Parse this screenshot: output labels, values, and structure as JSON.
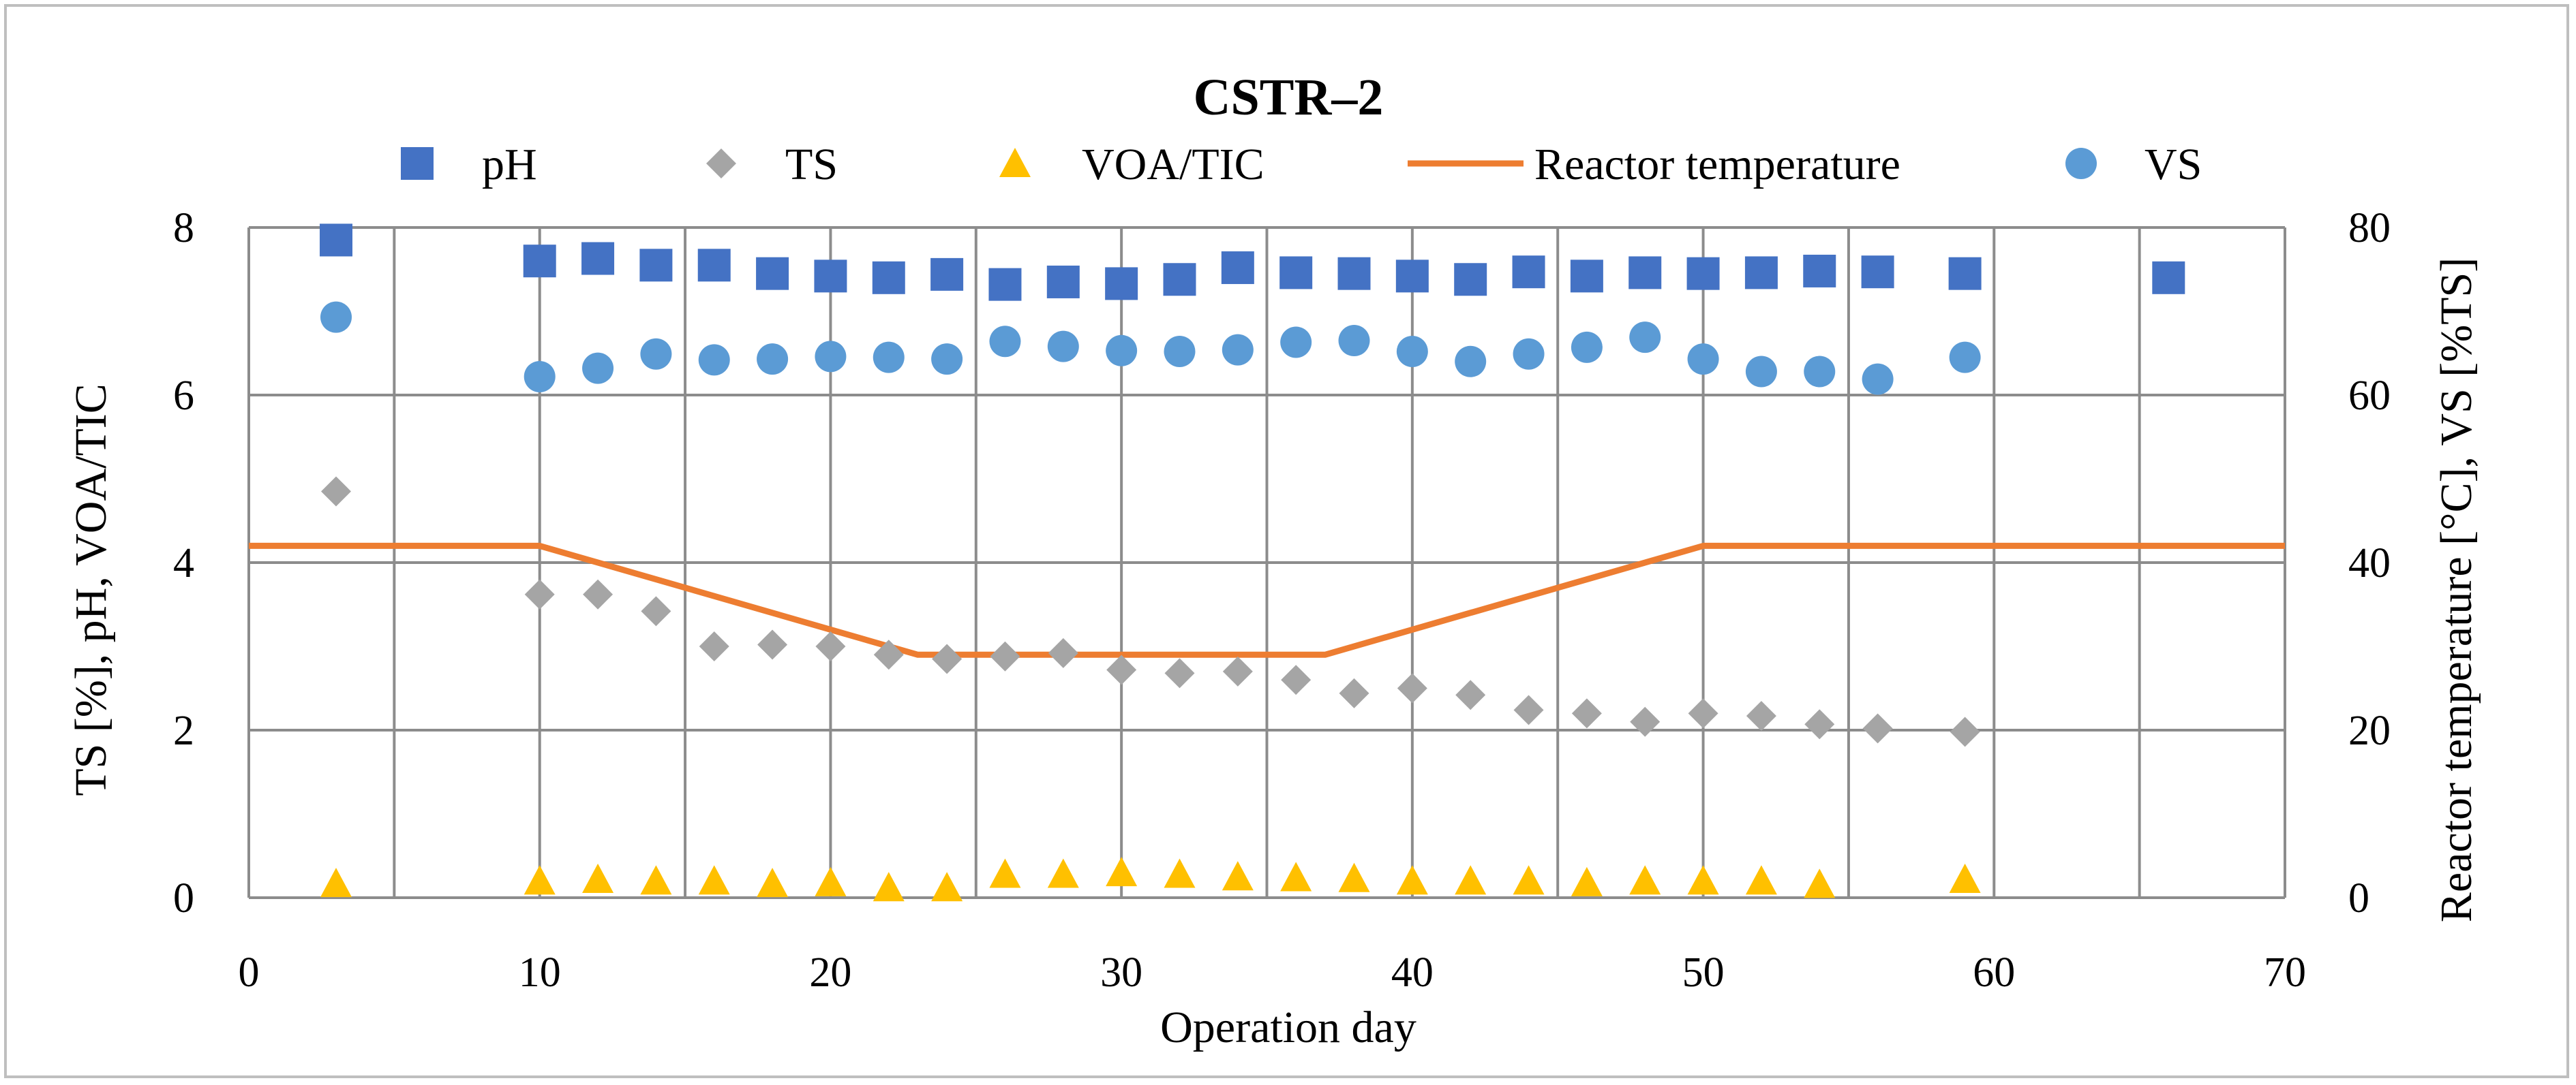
{
  "chart_data": {
    "type": "scatter",
    "title": "CSTR–2",
    "xlabel": "Operation day",
    "ylabel_left": "TS [%], pH, VOA/TIC",
    "ylabel_right": "Reactor temperature [°C], VS [%TS]",
    "xlim": [
      0,
      70
    ],
    "ylim_left": [
      0,
      8
    ],
    "ylim_right": [
      0,
      80
    ],
    "x_ticks": [
      0,
      10,
      20,
      30,
      40,
      50,
      60,
      70
    ],
    "y_ticks_left": [
      0,
      2,
      4,
      6,
      8
    ],
    "y_ticks_right": [
      0,
      20,
      40,
      60,
      80
    ],
    "grid": true,
    "legend_position": "top",
    "series": [
      {
        "name": "pH",
        "axis": "left",
        "marker": "square",
        "color": "#4472C4",
        "points": [
          [
            3,
            7.85
          ],
          [
            10,
            7.6
          ],
          [
            12,
            7.63
          ],
          [
            14,
            7.55
          ],
          [
            16,
            7.55
          ],
          [
            18,
            7.45
          ],
          [
            20,
            7.42
          ],
          [
            22,
            7.4
          ],
          [
            24,
            7.44
          ],
          [
            26,
            7.32
          ],
          [
            28,
            7.35
          ],
          [
            30,
            7.33
          ],
          [
            32,
            7.38
          ],
          [
            34,
            7.52
          ],
          [
            36,
            7.46
          ],
          [
            38,
            7.45
          ],
          [
            40,
            7.42
          ],
          [
            42,
            7.38
          ],
          [
            44,
            7.47
          ],
          [
            46,
            7.42
          ],
          [
            48,
            7.46
          ],
          [
            50,
            7.45
          ],
          [
            52,
            7.46
          ],
          [
            54,
            7.48
          ],
          [
            56,
            7.47
          ],
          [
            59,
            7.45
          ],
          [
            66,
            7.4
          ]
        ]
      },
      {
        "name": "TS",
        "axis": "left",
        "marker": "diamond",
        "color": "#A5A5A5",
        "points": [
          [
            3,
            4.85
          ],
          [
            10,
            3.62
          ],
          [
            12,
            3.62
          ],
          [
            14,
            3.42
          ],
          [
            16,
            3.0
          ],
          [
            18,
            3.02
          ],
          [
            20,
            3.0
          ],
          [
            22,
            2.9
          ],
          [
            24,
            2.85
          ],
          [
            26,
            2.88
          ],
          [
            28,
            2.92
          ],
          [
            30,
            2.72
          ],
          [
            32,
            2.68
          ],
          [
            34,
            2.7
          ],
          [
            36,
            2.6
          ],
          [
            38,
            2.44
          ],
          [
            40,
            2.5
          ],
          [
            42,
            2.42
          ],
          [
            44,
            2.24
          ],
          [
            46,
            2.2
          ],
          [
            48,
            2.1
          ],
          [
            50,
            2.2
          ],
          [
            52,
            2.17
          ],
          [
            54,
            2.07
          ],
          [
            56,
            2.02
          ],
          [
            59,
            1.98
          ]
        ]
      },
      {
        "name": "VOA/TIC",
        "axis": "left",
        "marker": "triangle",
        "color": "#FFC000",
        "points": [
          [
            3,
            0.17
          ],
          [
            10,
            0.2
          ],
          [
            12,
            0.22
          ],
          [
            14,
            0.2
          ],
          [
            16,
            0.2
          ],
          [
            18,
            0.17
          ],
          [
            20,
            0.18
          ],
          [
            22,
            0.12
          ],
          [
            24,
            0.12
          ],
          [
            26,
            0.28
          ],
          [
            28,
            0.28
          ],
          [
            30,
            0.3
          ],
          [
            32,
            0.28
          ],
          [
            34,
            0.25
          ],
          [
            36,
            0.24
          ],
          [
            38,
            0.23
          ],
          [
            40,
            0.2
          ],
          [
            42,
            0.2
          ],
          [
            44,
            0.2
          ],
          [
            46,
            0.18
          ],
          [
            48,
            0.2
          ],
          [
            50,
            0.2
          ],
          [
            52,
            0.2
          ],
          [
            54,
            0.16
          ],
          [
            59,
            0.22
          ]
        ]
      },
      {
        "name": "Reactor temperature",
        "axis": "right",
        "marker": "line",
        "color": "#ED7D31",
        "points": [
          [
            0,
            42
          ],
          [
            10,
            42
          ],
          [
            23,
            29
          ],
          [
            37,
            29
          ],
          [
            50,
            42
          ],
          [
            70,
            42
          ]
        ]
      },
      {
        "name": "VS",
        "axis": "right",
        "marker": "circle",
        "color": "#5B9BD5",
        "points": [
          [
            3,
            69.3
          ],
          [
            10,
            62.2
          ],
          [
            12,
            63.2
          ],
          [
            14,
            64.9
          ],
          [
            16,
            64.2
          ],
          [
            18,
            64.3
          ],
          [
            20,
            64.6
          ],
          [
            22,
            64.5
          ],
          [
            24,
            64.3
          ],
          [
            26,
            66.4
          ],
          [
            28,
            65.8
          ],
          [
            30,
            65.3
          ],
          [
            32,
            65.2
          ],
          [
            34,
            65.4
          ],
          [
            36,
            66.3
          ],
          [
            38,
            66.5
          ],
          [
            40,
            65.2
          ],
          [
            42,
            64.0
          ],
          [
            44,
            64.9
          ],
          [
            46,
            65.7
          ],
          [
            48,
            66.9
          ],
          [
            50,
            64.3
          ],
          [
            52,
            62.8
          ],
          [
            54,
            62.8
          ],
          [
            56,
            61.9
          ],
          [
            59,
            64.5
          ]
        ]
      }
    ]
  }
}
